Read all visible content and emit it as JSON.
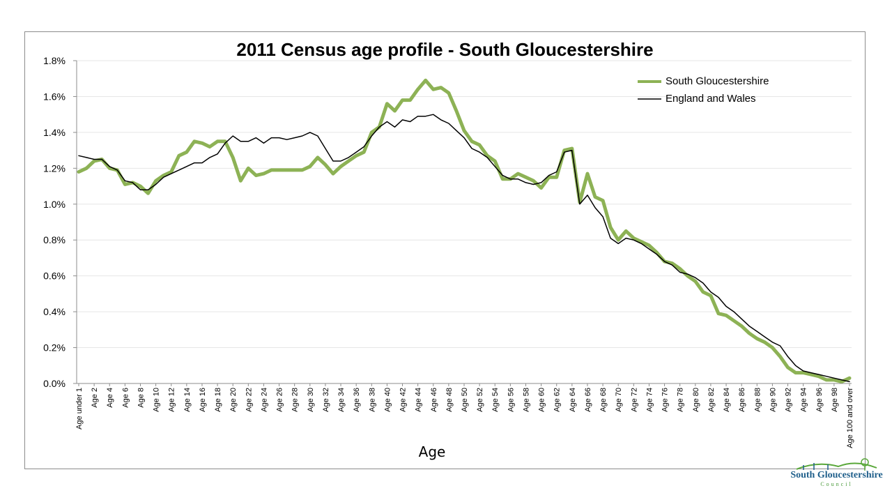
{
  "chart_data": {
    "type": "line",
    "title": "2011 Census age profile - South Gloucestershire",
    "xlabel": "Age",
    "ylabel": "",
    "ylim": [
      0,
      1.8
    ],
    "yticks": [
      "0.0%",
      "0.2%",
      "0.4%",
      "0.6%",
      "0.8%",
      "1.0%",
      "1.2%",
      "1.4%",
      "1.6%",
      "1.8%"
    ],
    "grid": "horizontal",
    "legend_position": "top-right",
    "categories": [
      "Age under 1",
      "Age 1",
      "Age 2",
      "Age 3",
      "Age 4",
      "Age 5",
      "Age 6",
      "Age 7",
      "Age 8",
      "Age 9",
      "Age 10",
      "Age 11",
      "Age 12",
      "Age 13",
      "Age 14",
      "Age 15",
      "Age 16",
      "Age 17",
      "Age 18",
      "Age 19",
      "Age 20",
      "Age 21",
      "Age 22",
      "Age 23",
      "Age 24",
      "Age 25",
      "Age 26",
      "Age 27",
      "Age 28",
      "Age 29",
      "Age 30",
      "Age 31",
      "Age 32",
      "Age 33",
      "Age 34",
      "Age 35",
      "Age 36",
      "Age 37",
      "Age 38",
      "Age 39",
      "Age 40",
      "Age 41",
      "Age 42",
      "Age 43",
      "Age 44",
      "Age 45",
      "Age 46",
      "Age 47",
      "Age 48",
      "Age 49",
      "Age 50",
      "Age 51",
      "Age 52",
      "Age 53",
      "Age 54",
      "Age 55",
      "Age 56",
      "Age 57",
      "Age 58",
      "Age 59",
      "Age 60",
      "Age 61",
      "Age 62",
      "Age 63",
      "Age 64",
      "Age 65",
      "Age 66",
      "Age 67",
      "Age 68",
      "Age 69",
      "Age 70",
      "Age 71",
      "Age 72",
      "Age 73",
      "Age 74",
      "Age 75",
      "Age 76",
      "Age 77",
      "Age 78",
      "Age 79",
      "Age 80",
      "Age 81",
      "Age 82",
      "Age 83",
      "Age 84",
      "Age 85",
      "Age 86",
      "Age 87",
      "Age 88",
      "Age 89",
      "Age 90",
      "Age 91",
      "Age 92",
      "Age 93",
      "Age 94",
      "Age 95",
      "Age 96",
      "Age 97",
      "Age 98",
      "Age 99",
      "Age 100 and over"
    ],
    "shown_tick_labels": [
      "Age under 1",
      "Age 2",
      "Age 4",
      "Age 6",
      "Age 8",
      "Age 10",
      "Age 12",
      "Age 14",
      "Age 16",
      "Age 18",
      "Age 20",
      "Age 22",
      "Age 24",
      "Age 26",
      "Age 28",
      "Age 30",
      "Age 32",
      "Age 34",
      "Age 36",
      "Age 38",
      "Age 40",
      "Age 42",
      "Age 44",
      "Age 46",
      "Age 48",
      "Age 50",
      "Age 52",
      "Age 54",
      "Age 56",
      "Age 58",
      "Age 60",
      "Age 62",
      "Age 64",
      "Age 66",
      "Age 68",
      "Age 70",
      "Age 72",
      "Age 74",
      "Age 76",
      "Age 78",
      "Age 80",
      "Age 82",
      "Age 84",
      "Age 86",
      "Age 88",
      "Age 90",
      "Age 92",
      "Age 94",
      "Age 96",
      "Age 98",
      "Age 100 and over"
    ],
    "series": [
      {
        "name": "South Gloucestershire",
        "color": "#8db255",
        "values": [
          1.18,
          1.2,
          1.24,
          1.25,
          1.2,
          1.19,
          1.11,
          1.12,
          1.1,
          1.06,
          1.13,
          1.16,
          1.18,
          1.27,
          1.29,
          1.35,
          1.34,
          1.32,
          1.35,
          1.35,
          1.26,
          1.13,
          1.2,
          1.16,
          1.17,
          1.19,
          1.19,
          1.19,
          1.19,
          1.19,
          1.21,
          1.26,
          1.22,
          1.17,
          1.21,
          1.24,
          1.27,
          1.29,
          1.4,
          1.43,
          1.56,
          1.52,
          1.58,
          1.58,
          1.64,
          1.69,
          1.64,
          1.65,
          1.62,
          1.52,
          1.41,
          1.35,
          1.33,
          1.27,
          1.24,
          1.14,
          1.14,
          1.17,
          1.15,
          1.13,
          1.09,
          1.15,
          1.15,
          1.3,
          1.31,
          1.01,
          1.17,
          1.04,
          1.02,
          0.87,
          0.8,
          0.85,
          0.81,
          0.79,
          0.77,
          0.73,
          0.68,
          0.67,
          0.64,
          0.6,
          0.57,
          0.51,
          0.49,
          0.39,
          0.38,
          0.35,
          0.32,
          0.28,
          0.25,
          0.23,
          0.2,
          0.15,
          0.09,
          0.06,
          0.06,
          0.05,
          0.04,
          0.02,
          0.02,
          0.01,
          0.03
        ]
      },
      {
        "name": "England and Wales",
        "color": "#000000",
        "values": [
          1.27,
          1.26,
          1.25,
          1.25,
          1.21,
          1.19,
          1.13,
          1.12,
          1.08,
          1.08,
          1.11,
          1.15,
          1.17,
          1.19,
          1.21,
          1.23,
          1.23,
          1.26,
          1.28,
          1.34,
          1.38,
          1.35,
          1.35,
          1.37,
          1.34,
          1.37,
          1.37,
          1.36,
          1.37,
          1.38,
          1.4,
          1.38,
          1.31,
          1.24,
          1.24,
          1.26,
          1.29,
          1.32,
          1.38,
          1.43,
          1.46,
          1.43,
          1.47,
          1.46,
          1.49,
          1.49,
          1.5,
          1.47,
          1.45,
          1.41,
          1.37,
          1.31,
          1.29,
          1.26,
          1.21,
          1.16,
          1.14,
          1.14,
          1.12,
          1.11,
          1.12,
          1.16,
          1.18,
          1.29,
          1.3,
          1.0,
          1.05,
          0.98,
          0.93,
          0.81,
          0.78,
          0.81,
          0.8,
          0.78,
          0.75,
          0.72,
          0.68,
          0.66,
          0.62,
          0.61,
          0.59,
          0.56,
          0.51,
          0.48,
          0.43,
          0.4,
          0.36,
          0.32,
          0.29,
          0.26,
          0.23,
          0.21,
          0.15,
          0.1,
          0.07,
          0.06,
          0.05,
          0.04,
          0.03,
          0.02,
          0.01
        ]
      }
    ]
  },
  "logo": {
    "name": "South Gloucestershire",
    "subtitle": "Council"
  }
}
